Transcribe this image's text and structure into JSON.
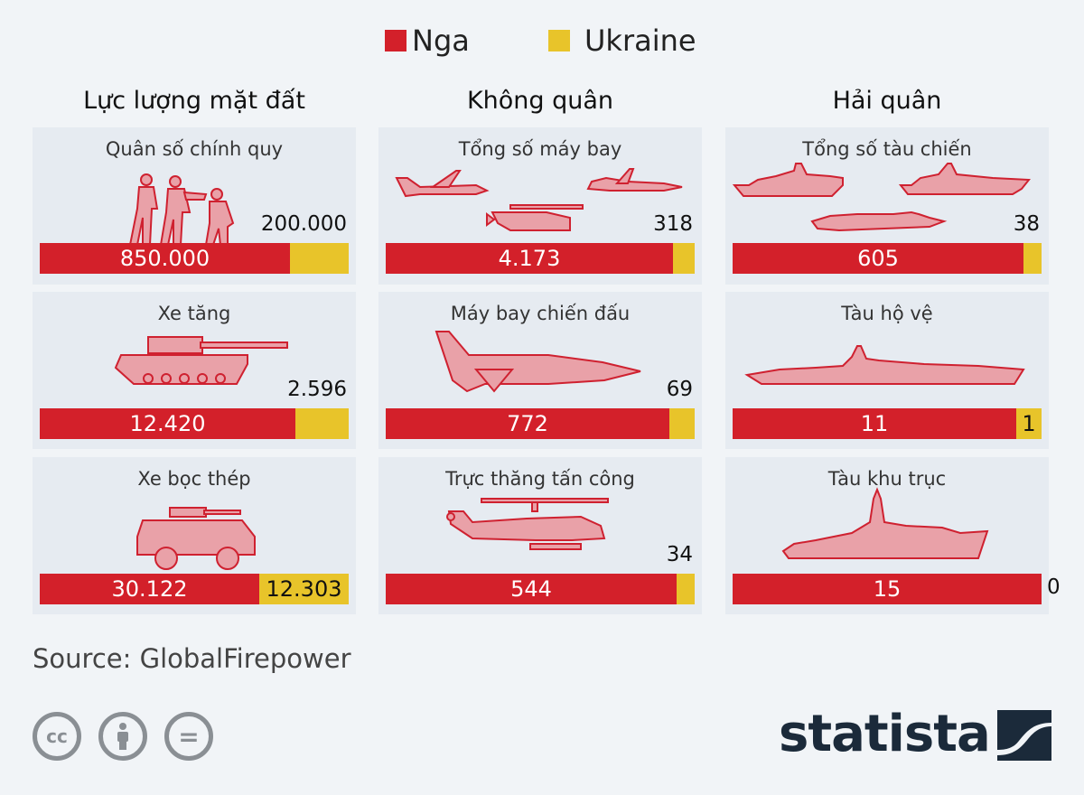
{
  "legend": [
    {
      "name": "Nga",
      "color": "#d3202a"
    },
    {
      "name": "Ukraine",
      "color": "#e8c42a"
    }
  ],
  "columns": [
    "Lực lượng mặt đất",
    "Không quân",
    "Hải quân"
  ],
  "chart_data": {
    "type": "bar",
    "orientation": "horizontal-stacked-share",
    "series": [
      {
        "name": "Nga",
        "color": "#d3202a"
      },
      {
        "name": "Ukraine",
        "color": "#e8c42a"
      }
    ],
    "panels": [
      {
        "group": "Lực lượng mặt đất",
        "title": "Quân số chính quy",
        "icon": "soldiers-icon",
        "nga": 850000,
        "ukraine": 200000,
        "nga_label": "850.000",
        "ukraine_label": "200.000",
        "ua_inside": false
      },
      {
        "group": "Lực lượng mặt đất",
        "title": "Xe tăng",
        "icon": "tank-icon",
        "nga": 12420,
        "ukraine": 2596,
        "nga_label": "12.420",
        "ukraine_label": "2.596",
        "ua_inside": false
      },
      {
        "group": "Lực lượng mặt đất",
        "title": "Xe bọc thép",
        "icon": "armored-vehicle-icon",
        "nga": 30122,
        "ukraine": 12303,
        "nga_label": "30.122",
        "ukraine_label": "12.303",
        "ua_inside": true
      },
      {
        "group": "Không quân",
        "title": "Tổng số máy bay",
        "icon": "aircraft-icon",
        "nga": 4173,
        "ukraine": 318,
        "nga_label": "4.173",
        "ukraine_label": "318",
        "ua_inside": false
      },
      {
        "group": "Không quân",
        "title": "Máy bay chiến đấu",
        "icon": "fighter-jet-icon",
        "nga": 772,
        "ukraine": 69,
        "nga_label": "772",
        "ukraine_label": "69",
        "ua_inside": false
      },
      {
        "group": "Không quân",
        "title": "Trực thăng tấn công",
        "icon": "attack-helicopter-icon",
        "nga": 544,
        "ukraine": 34,
        "nga_label": "544",
        "ukraine_label": "34",
        "ua_inside": false
      },
      {
        "group": "Hải quân",
        "title": "Tổng số tàu chiến",
        "icon": "warships-icon",
        "nga": 605,
        "ukraine": 38,
        "nga_label": "605",
        "ukraine_label": "38",
        "ua_inside": false
      },
      {
        "group": "Hải quân",
        "title": "Tàu hộ vệ",
        "icon": "corvette-icon",
        "nga": 11,
        "ukraine": 1,
        "nga_label": "11",
        "ukraine_label": "1",
        "ua_inside": true
      },
      {
        "group": "Hải quân",
        "title": "Tàu khu trục",
        "icon": "destroyer-icon",
        "nga": 15,
        "ukraine": 0,
        "nga_label": "15",
        "ukraine_label": "0",
        "ua_inside": false
      }
    ]
  },
  "footer": {
    "source": "Source: GlobalFirepower",
    "license_icons": [
      "cc-icon",
      "attribution-icon",
      "no-derivatives-icon"
    ],
    "brand": "statista",
    "cc_text": "cc",
    "nd_text": "="
  }
}
